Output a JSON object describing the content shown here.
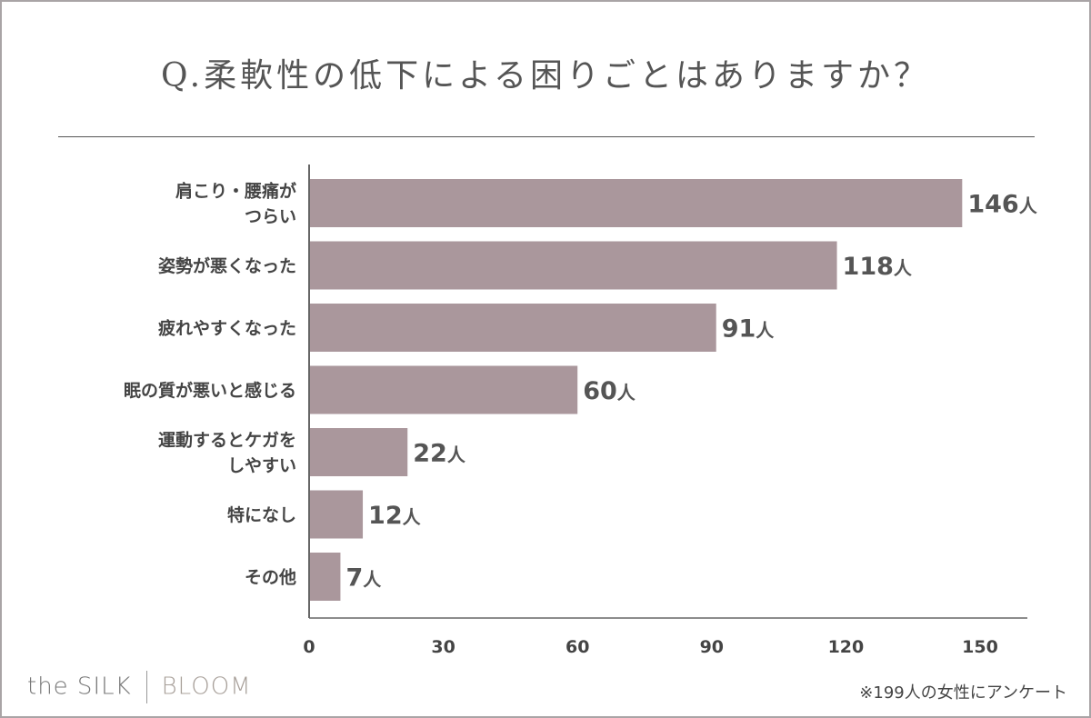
{
  "chart_data": {
    "type": "bar",
    "orientation": "horizontal",
    "title": "Q.柔軟性の低下による困りごとはありますか？",
    "categories": [
      [
        "肩こり・腰痛が",
        "つらい"
      ],
      [
        "姿勢が悪くなった"
      ],
      [
        "疲れやすくなった"
      ],
      [
        "眠の質が悪いと感じる"
      ],
      [
        "運動するとケガを",
        "しやすい"
      ],
      [
        "特になし"
      ],
      [
        "その他"
      ]
    ],
    "values": [
      146,
      118,
      91,
      60,
      22,
      12,
      7
    ],
    "value_unit": "人",
    "xlim": [
      0,
      150
    ],
    "xticks": [
      0,
      30,
      60,
      90,
      120,
      150
    ],
    "grid": false,
    "bar_color": "#aa979c"
  },
  "footer": {
    "logo_left": "the SILK",
    "logo_right": "BLOOM",
    "note": "※199人の女性にアンケート"
  }
}
